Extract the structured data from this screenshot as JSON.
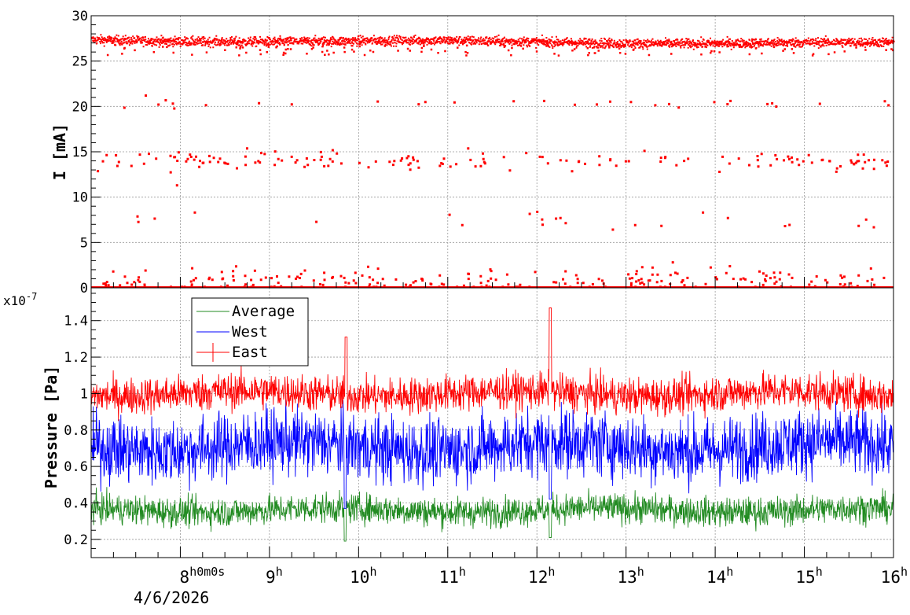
{
  "chart_data": [
    {
      "type": "scatter",
      "ylabel": "I [mA]",
      "ylim": [
        0,
        30
      ],
      "yticks": [
        "0",
        "5",
        "10",
        "15",
        "20",
        "25",
        "30"
      ],
      "xlim_hours": [
        7.0,
        16.0
      ],
      "grid": true,
      "series": [
        {
          "color": "#ff0000",
          "main_level": 27.3,
          "main_level_spread": 0.25,
          "outlier_bands_mA": [
            0.0,
            1.0,
            7.5,
            14.0,
            20.4
          ],
          "x_range": [
            "07:00",
            "16:00"
          ]
        }
      ]
    },
    {
      "type": "line",
      "ylabel": "Pressure [Pa]",
      "exponent": "x10",
      "exponent_power": "-7",
      "ylim": [
        0.1,
        1.58
      ],
      "yticks": [
        "0.2",
        "0.4",
        "0.6",
        "0.8",
        "1",
        "1.2",
        "1.4"
      ],
      "xlim_hours": [
        7.0,
        16.0
      ],
      "grid": true,
      "legend": {
        "position": "top-left"
      },
      "series": [
        {
          "name": "Average",
          "color": "#228b22",
          "mean": 0.36,
          "noise": 0.04,
          "spikes": [
            {
              "x": 9.85,
              "y": 0.19
            },
            {
              "x": 12.15,
              "y": 0.21
            }
          ]
        },
        {
          "name": "West",
          "color": "#0000ff",
          "mean": 0.71,
          "noise": 0.09,
          "spikes": [
            {
              "x": 9.85,
              "y": 0.37
            },
            {
              "x": 12.15,
              "y": 0.42
            }
          ]
        },
        {
          "name": "East",
          "color": "#ff0000",
          "mean": 1.0,
          "noise": 0.05,
          "spikes": [
            {
              "x": 9.86,
              "y": 1.31
            },
            {
              "x": 12.15,
              "y": 1.47
            }
          ]
        }
      ],
      "xticks": [
        {
          "hour": 8,
          "main": "8",
          "sup": "h0m0s"
        },
        {
          "hour": 9,
          "main": "9",
          "sup": "h"
        },
        {
          "hour": 10,
          "main": "10",
          "sup": "h"
        },
        {
          "hour": 11,
          "main": "11",
          "sup": "h"
        },
        {
          "hour": 12,
          "main": "12",
          "sup": "h"
        },
        {
          "hour": 13,
          "main": "13",
          "sup": "h"
        },
        {
          "hour": 14,
          "main": "14",
          "sup": "h"
        },
        {
          "hour": 15,
          "main": "15",
          "sup": "h"
        },
        {
          "hour": 16,
          "main": "16",
          "sup": "h"
        }
      ],
      "date": "4/6/2026"
    }
  ]
}
